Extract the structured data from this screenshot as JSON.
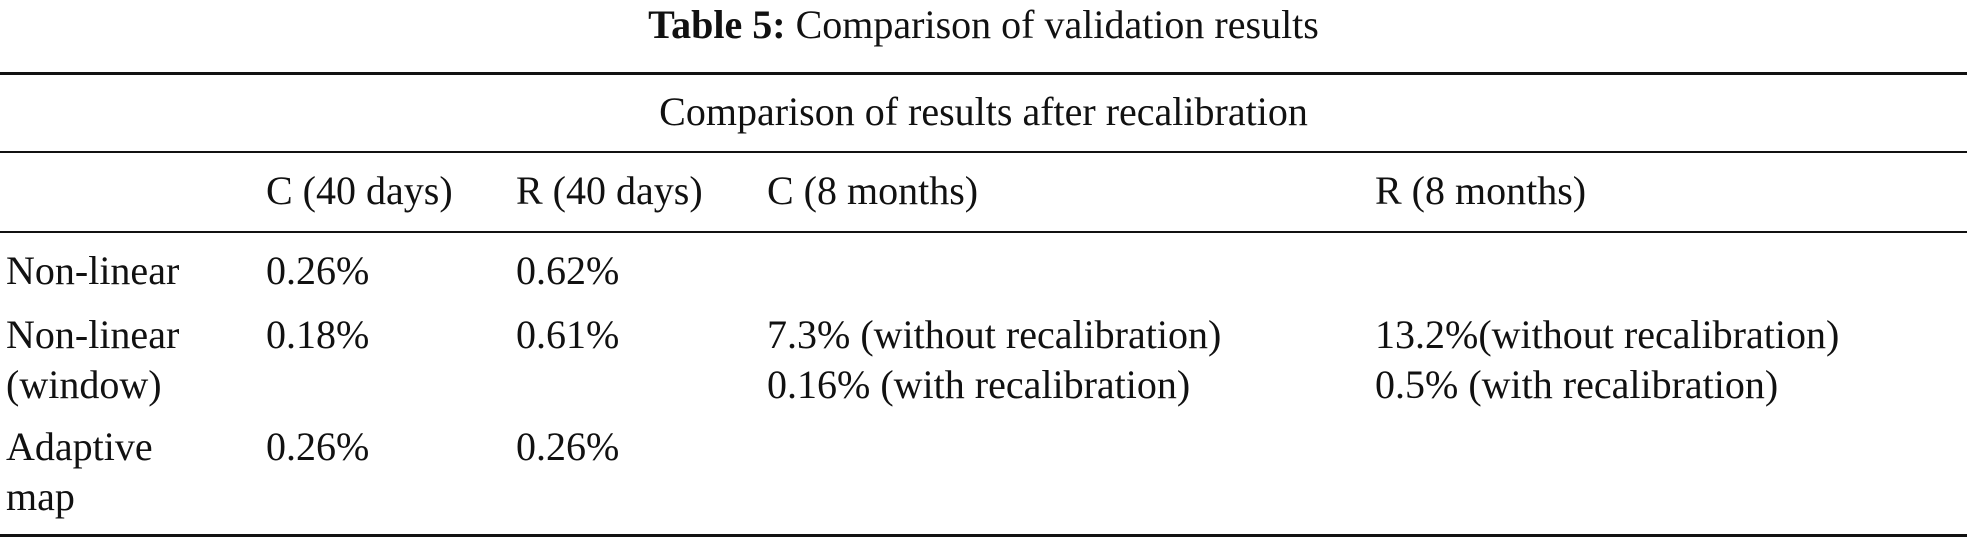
{
  "caption": {
    "label": "Table 5:",
    "text": "Comparison of validation results"
  },
  "table": {
    "group_header": "Comparison of results after recalibration",
    "columns": [
      "",
      "C (40 days)",
      "R (40 days)",
      "C (8 months)",
      "R (8 months)"
    ],
    "rows": [
      {
        "label": [
          "Non-linear"
        ],
        "c40": "0.26%",
        "r40": "0.62%",
        "c8m": [],
        "r8m": []
      },
      {
        "label": [
          "Non-linear",
          "(window)"
        ],
        "c40": "0.18%",
        "r40": "0.61%",
        "c8m": [
          "7.3% (without recalibration)",
          "0.16% (with recalibration)"
        ],
        "r8m": [
          "13.2%(without recalibration)",
          "0.5% (with recalibration)"
        ]
      },
      {
        "label": [
          "Adaptive",
          "map"
        ],
        "c40": "0.26%",
        "r40": "0.26%",
        "c8m": [],
        "r8m": []
      }
    ]
  }
}
